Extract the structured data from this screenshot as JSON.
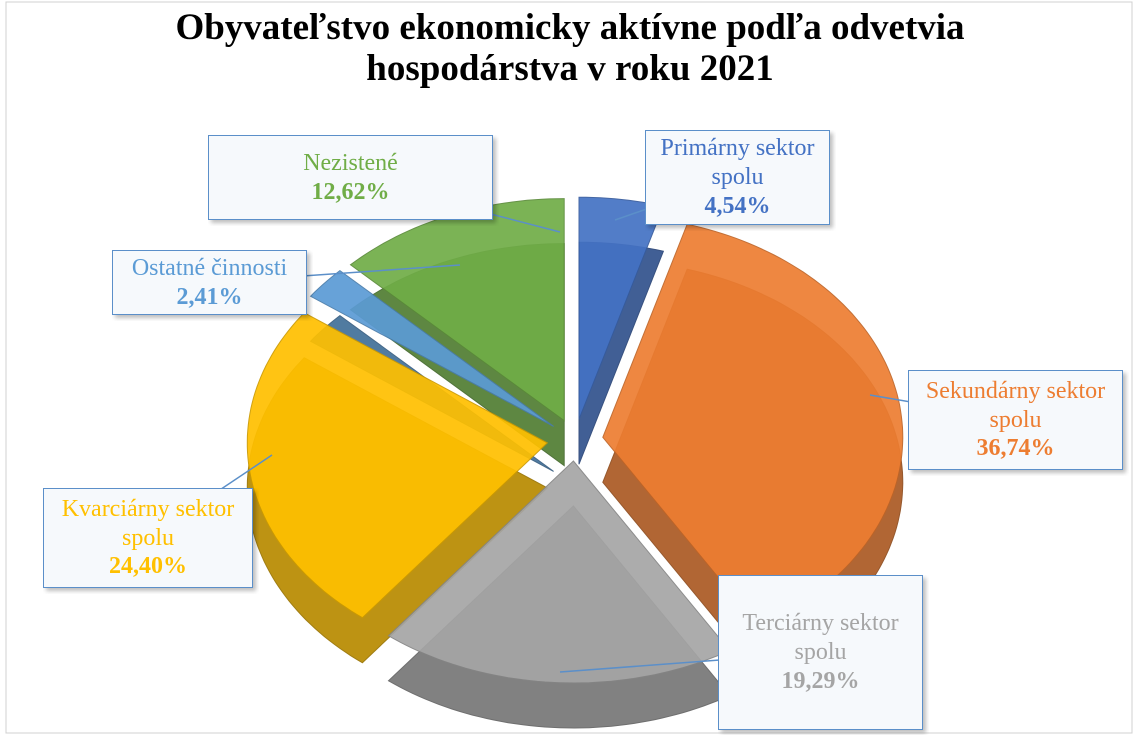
{
  "chart_data": {
    "type": "pie",
    "title": "Obyvateľstvo ekonomicky aktívne podľa odvetvia hospodárstva v roku 2021",
    "categories": [
      "Primárny sektor spolu",
      "Sekundárny sektor spolu",
      "Terciárny sektor spolu",
      "Kvarciárny sektor spolu",
      "Ostatné činnosti",
      "Nezistené"
    ],
    "values": [
      4.54,
      36.74,
      19.29,
      24.4,
      2.41,
      12.62
    ],
    "value_labels": [
      "4,54%",
      "36,74%",
      "19,29%",
      "24,40%",
      "2,41%",
      "12,62%"
    ],
    "colors": [
      "#4472c4",
      "#ed7d31",
      "#a5a5a5",
      "#ffc000",
      "#5b9bd5",
      "#70ad47"
    ]
  }
}
